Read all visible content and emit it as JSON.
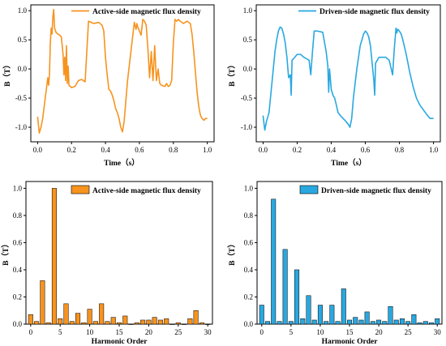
{
  "chart_data": [
    {
      "type": "line",
      "panel": "top-left",
      "xlabel": "Time（s）",
      "ylabel": "B（T）",
      "xlim": [
        -0.04,
        1.04
      ],
      "ylim": [
        -1.25,
        1.1
      ],
      "xticks": [
        0.0,
        0.2,
        0.4,
        0.6,
        0.8,
        1.0
      ],
      "xtick_labels": [
        "0.0",
        "0.2",
        "0.4",
        "0.6",
        "0.8",
        "1.0"
      ],
      "yticks": [
        -1.0,
        -0.5,
        0.0,
        0.5,
        1.0
      ],
      "ytick_labels": [
        "-1.0",
        "-0.5",
        "0.0",
        "0.5",
        "1.0"
      ],
      "legend_position": "top-right",
      "color": "#f7931e",
      "series": [
        {
          "name": "Active-side magnetic flux density",
          "x": [
            0.0,
            0.01,
            0.02,
            0.03,
            0.045,
            0.06,
            0.065,
            0.07,
            0.075,
            0.08,
            0.085,
            0.09,
            0.095,
            0.1,
            0.11,
            0.12,
            0.13,
            0.14,
            0.15,
            0.155,
            0.16,
            0.165,
            0.17,
            0.175,
            0.18,
            0.185,
            0.2,
            0.22,
            0.24,
            0.26,
            0.28,
            0.3,
            0.33,
            0.36,
            0.38,
            0.39,
            0.4,
            0.41,
            0.42,
            0.43,
            0.44,
            0.45,
            0.46,
            0.47,
            0.48,
            0.49,
            0.5,
            0.51,
            0.52,
            0.53,
            0.54,
            0.56,
            0.57,
            0.58,
            0.585,
            0.59,
            0.6,
            0.61,
            0.62,
            0.63,
            0.64,
            0.65,
            0.66,
            0.67,
            0.68,
            0.69,
            0.7,
            0.71,
            0.72,
            0.73,
            0.75,
            0.76,
            0.77,
            0.78,
            0.79,
            0.8,
            0.81,
            0.82,
            0.83,
            0.84,
            0.86,
            0.88,
            0.9,
            0.91,
            0.92,
            0.93,
            0.94,
            0.95,
            0.96,
            0.97,
            0.98,
            0.99,
            1.0
          ],
          "y": [
            -0.82,
            -1.1,
            -1.0,
            -0.85,
            -0.5,
            -0.15,
            -0.28,
            -0.1,
            0.45,
            0.7,
            0.6,
            0.9,
            1.02,
            0.7,
            0.62,
            0.6,
            0.58,
            0.55,
            0.25,
            -0.1,
            0.2,
            -0.2,
            0.4,
            -0.25,
            0.05,
            -0.28,
            -0.32,
            -0.3,
            -0.2,
            -0.18,
            -0.22,
            0.82,
            0.78,
            0.8,
            0.75,
            0.65,
            0.2,
            -0.1,
            -0.35,
            -0.38,
            -0.45,
            -0.55,
            -0.68,
            -0.75,
            -0.85,
            -1.0,
            -1.08,
            -0.9,
            -0.55,
            -0.2,
            0.05,
            0.55,
            0.8,
            0.68,
            0.78,
            0.72,
            0.65,
            0.58,
            0.85,
            0.82,
            0.75,
            0.35,
            -0.15,
            0.3,
            -0.2,
            0.4,
            -0.2,
            0.0,
            -0.25,
            -0.28,
            -0.3,
            -0.25,
            -0.3,
            -0.28,
            -0.2,
            0.45,
            0.85,
            0.82,
            0.85,
            0.82,
            0.78,
            0.82,
            0.78,
            0.6,
            0.3,
            -0.05,
            -0.4,
            -0.65,
            -0.8,
            -0.85,
            -0.88,
            -0.85,
            -0.85
          ]
        }
      ]
    },
    {
      "type": "line",
      "panel": "top-right",
      "xlabel": "Time（s）",
      "ylabel": "B（T）",
      "xlim": [
        -0.04,
        1.04
      ],
      "ylim": [
        -1.25,
        1.1
      ],
      "xticks": [
        0.0,
        0.2,
        0.4,
        0.6,
        0.8,
        1.0
      ],
      "xtick_labels": [
        "0.0",
        "0.2",
        "0.4",
        "0.6",
        "0.8",
        "1.0"
      ],
      "yticks": [
        -1.0,
        -0.5,
        0.0,
        0.5,
        1.0
      ],
      "ytick_labels": [
        "-1.0",
        "-0.5",
        "0.0",
        "0.5",
        "1.0"
      ],
      "legend_position": "top-right",
      "color": "#29a8e0",
      "series": [
        {
          "name": "Driven-side magnetic flux density",
          "x": [
            0.0,
            0.01,
            0.02,
            0.035,
            0.05,
            0.06,
            0.07,
            0.08,
            0.09,
            0.1,
            0.11,
            0.12,
            0.13,
            0.14,
            0.15,
            0.16,
            0.165,
            0.17,
            0.18,
            0.2,
            0.22,
            0.24,
            0.27,
            0.28,
            0.29,
            0.3,
            0.32,
            0.35,
            0.37,
            0.38,
            0.385,
            0.39,
            0.4,
            0.41,
            0.42,
            0.43,
            0.44,
            0.46,
            0.48,
            0.5,
            0.51,
            0.52,
            0.53,
            0.55,
            0.57,
            0.59,
            0.6,
            0.61,
            0.62,
            0.63,
            0.64,
            0.65,
            0.655,
            0.66,
            0.67,
            0.68,
            0.7,
            0.72,
            0.74,
            0.76,
            0.77,
            0.78,
            0.785,
            0.79,
            0.8,
            0.81,
            0.82,
            0.84,
            0.86,
            0.88,
            0.9,
            0.92,
            0.94,
            0.96,
            0.98,
            0.99,
            1.0
          ],
          "y": [
            -0.8,
            -1.05,
            -0.9,
            -0.75,
            -0.3,
            0.0,
            0.3,
            0.5,
            0.65,
            0.72,
            0.7,
            0.6,
            0.45,
            0.2,
            -0.15,
            -0.1,
            -0.45,
            0.15,
            0.18,
            0.25,
            0.25,
            0.2,
            0.15,
            -0.1,
            0.3,
            0.65,
            0.65,
            0.63,
            0.3,
            0.05,
            -0.4,
            0.0,
            -0.35,
            -0.45,
            -0.5,
            -0.62,
            -0.75,
            -0.82,
            -0.88,
            -0.95,
            -1.0,
            -0.85,
            -0.5,
            0.0,
            0.4,
            0.6,
            0.65,
            0.62,
            0.55,
            0.4,
            0.1,
            -0.2,
            -0.45,
            0.1,
            0.15,
            0.2,
            0.2,
            0.2,
            0.15,
            -0.1,
            0.35,
            0.7,
            0.62,
            0.68,
            0.65,
            0.6,
            0.5,
            0.25,
            -0.05,
            -0.3,
            -0.5,
            -0.62,
            -0.7,
            -0.78,
            -0.85,
            -0.85,
            -0.85
          ]
        }
      ]
    },
    {
      "type": "bar",
      "panel": "bottom-left",
      "xlabel": "Harmonic Order",
      "ylabel": "B（T）",
      "xlim": [
        -0.8,
        30.8
      ],
      "ylim": [
        0,
        1.05
      ],
      "xticks": [
        0,
        5,
        10,
        15,
        20,
        25,
        30
      ],
      "xtick_labels": [
        "0",
        "5",
        "10",
        "15",
        "20",
        "25",
        "30"
      ],
      "yticks": [
        0.0,
        0.2,
        0.4,
        0.6,
        0.8,
        1.0
      ],
      "ytick_labels": [
        "0.0",
        "0.2",
        "0.4",
        "0.6",
        "0.8",
        "1.0"
      ],
      "legend_position": "top-right",
      "color": "#f7931e",
      "categories": [
        0,
        1,
        2,
        3,
        4,
        5,
        6,
        7,
        8,
        9,
        10,
        11,
        12,
        13,
        14,
        15,
        16,
        17,
        18,
        19,
        20,
        21,
        22,
        23,
        24,
        25,
        26,
        27,
        28,
        29,
        30
      ],
      "series": [
        {
          "name": "Active-side magnetic flux density",
          "values": [
            0.07,
            0.02,
            0.32,
            0.01,
            1.0,
            0.04,
            0.15,
            0.02,
            0.08,
            0.01,
            0.11,
            0.02,
            0.15,
            0.02,
            0.05,
            0.01,
            0.06,
            0.0,
            0.01,
            0.03,
            0.03,
            0.05,
            0.03,
            0.04,
            0.0,
            0.01,
            0.0,
            0.04,
            0.1,
            0.01,
            0.0
          ]
        }
      ]
    },
    {
      "type": "bar",
      "panel": "bottom-right",
      "xlabel": "Harmonic Order",
      "ylabel": "B（T）",
      "xlim": [
        -0.8,
        30.8
      ],
      "ylim": [
        0,
        1.05
      ],
      "xticks": [
        0,
        5,
        10,
        15,
        20,
        25,
        30
      ],
      "xtick_labels": [
        "0",
        "5",
        "10",
        "15",
        "20",
        "25",
        "30"
      ],
      "yticks": [
        0.0,
        0.2,
        0.4,
        0.6,
        0.8,
        1.0
      ],
      "ytick_labels": [
        "0.0",
        "0.2",
        "0.4",
        "0.6",
        "0.8",
        "1.0"
      ],
      "legend_position": "top-right",
      "color": "#29a8e0",
      "categories": [
        0,
        1,
        2,
        3,
        4,
        5,
        6,
        7,
        8,
        9,
        10,
        11,
        12,
        13,
        14,
        15,
        16,
        17,
        18,
        19,
        20,
        21,
        22,
        23,
        24,
        25,
        26,
        27,
        28,
        29,
        30
      ],
      "series": [
        {
          "name": "Driven-side magnetic flux density",
          "values": [
            0.14,
            0.02,
            0.92,
            0.02,
            0.55,
            0.02,
            0.4,
            0.04,
            0.21,
            0.03,
            0.14,
            0.02,
            0.14,
            0.02,
            0.26,
            0.03,
            0.05,
            0.03,
            0.09,
            0.02,
            0.03,
            0.02,
            0.13,
            0.03,
            0.04,
            0.02,
            0.07,
            0.01,
            0.02,
            0.01,
            0.04
          ]
        }
      ]
    }
  ]
}
